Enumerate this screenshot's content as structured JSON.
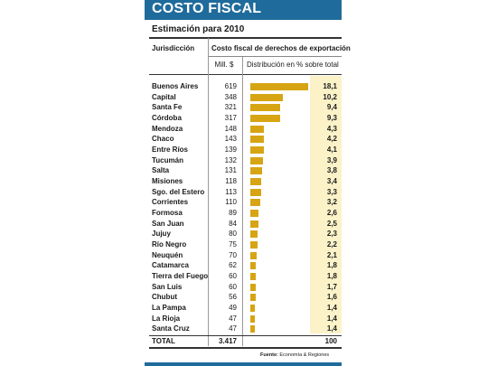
{
  "header": {
    "title": "COSTO FISCAL",
    "subtitle": "Estimación para 2010"
  },
  "table_headers": {
    "jurisdiction": "Jurisdicción",
    "cost": "Costo fiscal de derechos de exportación",
    "millions": "Mill. $",
    "distribution": "Distribución en % sobre total"
  },
  "colors": {
    "banner": "#1f6b9b",
    "bar": "#d7a514",
    "pct_column": "#fbf2c8"
  },
  "chart_data": {
    "type": "bar",
    "orientation": "horizontal",
    "categories": [
      "Buenos Aires",
      "Capital",
      "Santa Fe",
      "Córdoba",
      "Mendoza",
      "Chaco",
      "Entre Ríos",
      "Tucumán",
      "Salta",
      "Misiones",
      "Sgo. del Estero",
      "Corrientes",
      "Formosa",
      "San Juan",
      "Jujuy",
      "Río Negro",
      "Neuquén",
      "Catamarca",
      "Tierra del Fuego",
      "San Luis",
      "Chubut",
      "La Pampa",
      "La Rioja",
      "Santa Cruz"
    ],
    "millions": [
      "619",
      "348",
      "321",
      "317",
      "148",
      "143",
      "139",
      "132",
      "131",
      "118",
      "113",
      "110",
      "89",
      "84",
      "80",
      "75",
      "70",
      "62",
      "60",
      "60",
      "56",
      "49",
      "47",
      "47"
    ],
    "percent_labels": [
      "18,1",
      "10,2",
      "9,4",
      "9,3",
      "4,3",
      "4,2",
      "4,1",
      "3,9",
      "3,8",
      "3,4",
      "3,3",
      "3,2",
      "2,6",
      "2,5",
      "2,3",
      "2,2",
      "2,1",
      "1,8",
      "1,8",
      "1,7",
      "1,6",
      "1,4",
      "1,4",
      "1,4"
    ],
    "values": [
      18.1,
      10.2,
      9.4,
      9.3,
      4.3,
      4.2,
      4.1,
      3.9,
      3.8,
      3.4,
      3.3,
      3.2,
      2.6,
      2.5,
      2.3,
      2.2,
      2.1,
      1.8,
      1.8,
      1.7,
      1.6,
      1.4,
      1.4,
      1.4
    ],
    "total": {
      "label": "TOTAL",
      "millions": "3.417",
      "percent": "100"
    }
  },
  "footer": {
    "source_label": "Fuente:",
    "source_text": "Economía & Regiones"
  }
}
